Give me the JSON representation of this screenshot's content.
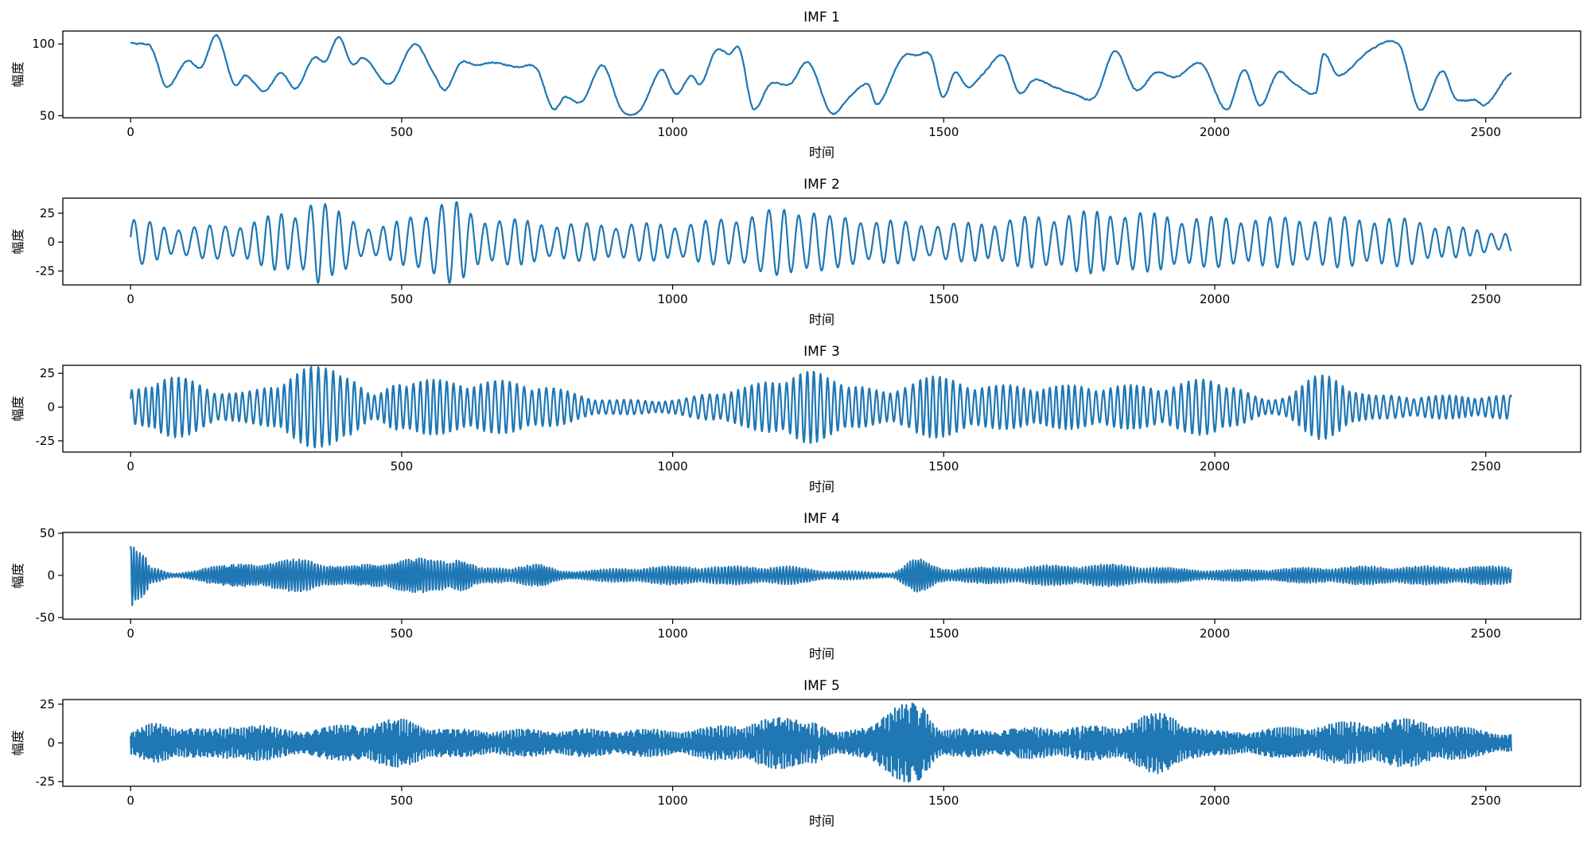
{
  "chart_data": [
    {
      "type": "line",
      "title": "IMF 1",
      "xlabel": "时间",
      "ylabel": "幅度",
      "xlim": [
        -125,
        2675
      ],
      "ylim": [
        48.5,
        109
      ],
      "xticks": [
        0,
        500,
        1000,
        1500,
        2000,
        2500
      ],
      "yticks": [
        50,
        100
      ],
      "color": "#1f77b4",
      "series": [
        {
          "name": "IMF 1",
          "points": [
            [
              0,
              101
            ],
            [
              10,
              100
            ],
            [
              25,
              100
            ],
            [
              40,
              96
            ],
            [
              66,
              70
            ],
            [
              103,
              88
            ],
            [
              131,
              84
            ],
            [
              159,
              106
            ],
            [
              191,
              72
            ],
            [
              212,
              78
            ],
            [
              247,
              67
            ],
            [
              277,
              80
            ],
            [
              305,
              69
            ],
            [
              337,
              90
            ],
            [
              360,
              88
            ],
            [
              384,
              105
            ],
            [
              408,
              86
            ],
            [
              431,
              90
            ],
            [
              478,
              72
            ],
            [
              524,
              100
            ],
            [
              562,
              78
            ],
            [
              581,
              68
            ],
            [
              609,
              87
            ],
            [
              637,
              85
            ],
            [
              667,
              87
            ],
            [
              712,
              84
            ],
            [
              749,
              83
            ],
            [
              779,
              55
            ],
            [
              801,
              63
            ],
            [
              833,
              60
            ],
            [
              871,
              85
            ],
            [
              906,
              54
            ],
            [
              940,
              54
            ],
            [
              979,
              82
            ],
            [
              1006,
              65
            ],
            [
              1034,
              78
            ],
            [
              1052,
              72
            ],
            [
              1079,
              95
            ],
            [
              1105,
              93
            ],
            [
              1124,
              96
            ],
            [
              1148,
              55
            ],
            [
              1180,
              72
            ],
            [
              1217,
              72
            ],
            [
              1251,
              87
            ],
            [
              1292,
              52
            ],
            [
              1326,
              63
            ],
            [
              1360,
              72
            ],
            [
              1378,
              58
            ],
            [
              1423,
              90
            ],
            [
              1451,
              92
            ],
            [
              1476,
              92
            ],
            [
              1498,
              63
            ],
            [
              1521,
              80
            ],
            [
              1545,
              70
            ],
            [
              1569,
              78
            ],
            [
              1610,
              92
            ],
            [
              1639,
              66
            ],
            [
              1667,
              75
            ],
            [
              1704,
              70
            ],
            [
              1742,
              65
            ],
            [
              1779,
              63
            ],
            [
              1816,
              95
            ],
            [
              1854,
              68
            ],
            [
              1891,
              80
            ],
            [
              1929,
              77
            ],
            [
              1976,
              86
            ],
            [
              2022,
              54
            ],
            [
              2054,
              82
            ],
            [
              2084,
              57
            ],
            [
              2116,
              80
            ],
            [
              2144,
              73
            ],
            [
              2187,
              66
            ],
            [
              2200,
              93
            ],
            [
              2228,
              78
            ],
            [
              2288,
              96
            ],
            [
              2341,
              99
            ],
            [
              2378,
              54
            ],
            [
              2419,
              81
            ],
            [
              2444,
              62
            ],
            [
              2481,
              61
            ],
            [
              2500,
              58
            ],
            [
              2547,
              80
            ]
          ]
        }
      ]
    },
    {
      "type": "line",
      "title": "IMF 2",
      "xlabel": "时间",
      "ylabel": "幅度",
      "xlim": [
        -125,
        2675
      ],
      "ylim": [
        -37,
        38
      ],
      "xticks": [
        0,
        500,
        1000,
        1500,
        2000,
        2500
      ],
      "yticks": [
        -25,
        0,
        25
      ],
      "color": "#1f77b4",
      "series": [
        {
          "name": "IMF 2",
          "length": 2548,
          "period": 27,
          "envelope": [
            [
              0,
              18
            ],
            [
              100,
              12
            ],
            [
              200,
              15
            ],
            [
              300,
              25
            ],
            [
              340,
              35
            ],
            [
              380,
              25
            ],
            [
              450,
              12
            ],
            [
              590,
              33
            ],
            [
              650,
              20
            ],
            [
              800,
              15
            ],
            [
              1000,
              15
            ],
            [
              1250,
              28
            ],
            [
              1300,
              20
            ],
            [
              1500,
              15
            ],
            [
              1800,
              25
            ],
            [
              2000,
              20
            ],
            [
              2300,
              20
            ],
            [
              2548,
              8
            ]
          ]
        }
      ]
    },
    {
      "type": "line",
      "title": "IMF 3",
      "xlabel": "时间",
      "ylabel": "幅度",
      "xlim": [
        -125,
        2675
      ],
      "ylim": [
        -33.3,
        31
      ],
      "xticks": [
        0,
        500,
        1000,
        1500,
        2000,
        2500
      ],
      "yticks": [
        -25,
        0,
        25
      ],
      "color": "#1f77b4",
      "series": [
        {
          "name": "IMF 3",
          "length": 2548,
          "period": 13,
          "envelope": [
            [
              0,
              12
            ],
            [
              60,
              22
            ],
            [
              200,
              10
            ],
            [
              350,
              28
            ],
            [
              380,
              30
            ],
            [
              450,
              8
            ],
            [
              500,
              20
            ],
            [
              600,
              18
            ],
            [
              700,
              18
            ],
            [
              900,
              5
            ],
            [
              1000,
              5
            ],
            [
              1100,
              12
            ],
            [
              1250,
              25
            ],
            [
              1300,
              20
            ],
            [
              1400,
              10
            ],
            [
              1450,
              22
            ],
            [
              1600,
              15
            ],
            [
              1900,
              15
            ],
            [
              2000,
              20
            ],
            [
              2100,
              5
            ],
            [
              2200,
              22
            ],
            [
              2300,
              8
            ],
            [
              2548,
              8
            ]
          ]
        }
      ]
    },
    {
      "type": "line",
      "title": "IMF 4",
      "xlabel": "时间",
      "ylabel": "幅度",
      "xlim": [
        -125,
        2675
      ],
      "ylim": [
        -52,
        51
      ],
      "xticks": [
        0,
        500,
        1000,
        1500,
        2000,
        2500
      ],
      "yticks": [
        -50,
        0,
        50
      ],
      "color": "#1f77b4",
      "series": [
        {
          "name": "IMF 4",
          "length": 2548,
          "period": 5.5,
          "envelope": [
            [
              0,
              48
            ],
            [
              20,
              30
            ],
            [
              40,
              8
            ],
            [
              80,
              2
            ],
            [
              150,
              10
            ],
            [
              250,
              15
            ],
            [
              320,
              18
            ],
            [
              400,
              10
            ],
            [
              500,
              18
            ],
            [
              600,
              20
            ],
            [
              650,
              8
            ],
            [
              750,
              12
            ],
            [
              800,
              5
            ],
            [
              1000,
              10
            ],
            [
              1200,
              10
            ],
            [
              1300,
              5
            ],
            [
              1400,
              3
            ],
            [
              1450,
              18
            ],
            [
              1500,
              8
            ],
            [
              1800,
              12
            ],
            [
              2000,
              6
            ],
            [
              2300,
              10
            ],
            [
              2548,
              10
            ]
          ]
        }
      ]
    },
    {
      "type": "line",
      "title": "IMF 5",
      "xlabel": "时间",
      "ylabel": "幅度",
      "xlim": [
        -125,
        2675
      ],
      "ylim": [
        -28,
        28
      ],
      "xticks": [
        0,
        500,
        1000,
        1500,
        2000,
        2500
      ],
      "yticks": [
        -25,
        0,
        25
      ],
      "color": "#1f77b4",
      "series": [
        {
          "name": "IMF 5",
          "length": 2548,
          "period": 2.6,
          "envelope": [
            [
              0,
              7
            ],
            [
              50,
              12
            ],
            [
              150,
              8
            ],
            [
              200,
              12
            ],
            [
              300,
              8
            ],
            [
              500,
              14
            ],
            [
              600,
              8
            ],
            [
              1000,
              8
            ],
            [
              1250,
              16
            ],
            [
              1300,
              6
            ],
            [
              1460,
              25
            ],
            [
              1500,
              8
            ],
            [
              1800,
              10
            ],
            [
              1900,
              18
            ],
            [
              2000,
              7
            ],
            [
              2350,
              14
            ],
            [
              2548,
              6
            ]
          ]
        }
      ]
    }
  ]
}
